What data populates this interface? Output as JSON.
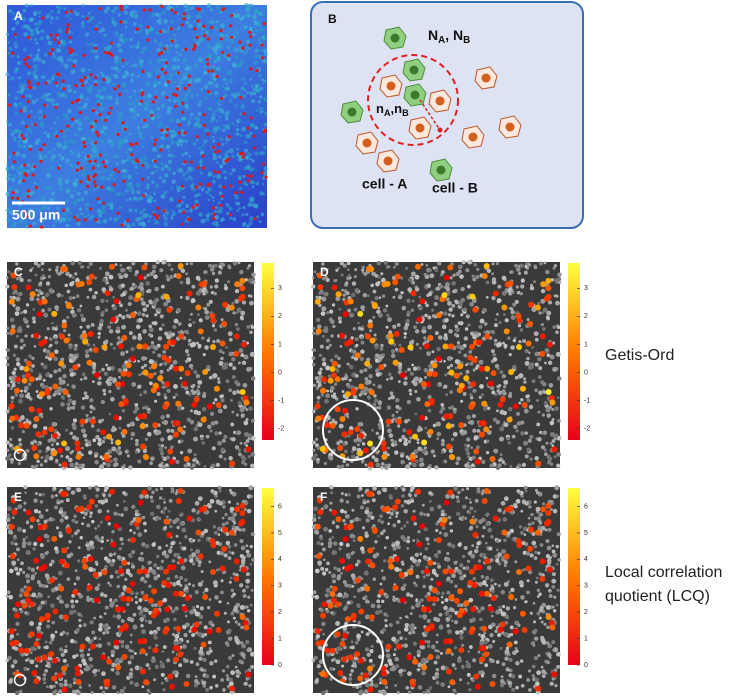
{
  "panel_a": {
    "label": "A",
    "scale_bar": "500 μm"
  },
  "panel_b": {
    "label": "B",
    "text_NA": [
      "N",
      "A",
      ", N",
      "B"
    ],
    "text_nA": [
      "n",
      "A",
      ",n",
      "B"
    ],
    "cell_a": "cell - A",
    "cell_b": "cell - B"
  },
  "getis_ord": {
    "label": "Getis-Ord",
    "panels": [
      "C",
      "D"
    ],
    "clim": [
      -2.4,
      3.9
    ],
    "ticks": [
      -2,
      -1,
      0,
      1,
      2,
      3
    ]
  },
  "lcq": {
    "label": "Local correlation quotient (LCQ)",
    "panels": [
      "E",
      "F"
    ],
    "clim": [
      0,
      6.7
    ],
    "ticks": [
      0,
      1,
      2,
      3,
      4,
      5,
      6
    ]
  }
}
